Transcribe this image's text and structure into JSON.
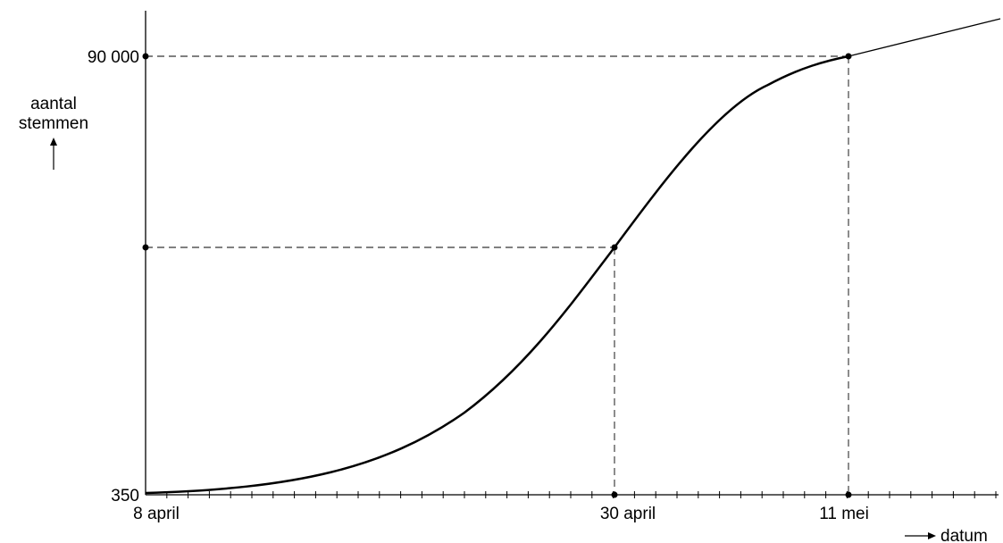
{
  "chart_data": {
    "type": "line",
    "title": "",
    "xlabel": "datum",
    "ylabel_lines": [
      "aantal",
      "stemmen"
    ],
    "x_tick_labels": [
      "8 april",
      "30 april",
      "11 mei"
    ],
    "y_tick_labels": [
      "350",
      "90 000"
    ],
    "x_scale": "date, one minor tick per day",
    "ylim": [
      350,
      90000
    ],
    "grid": false,
    "series": [
      {
        "values": [
          {
            "x": "8 april",
            "y": 350
          },
          {
            "x": "30 april",
            "y": 55000
          },
          {
            "x": "11 mei",
            "y": 90000
          }
        ]
      }
    ],
    "annotations": [
      {
        "type": "dashed-guide",
        "x": "30 april",
        "y": 55000,
        "note": "y value unlabeled"
      },
      {
        "type": "dashed-guide",
        "x": "11 mei",
        "y": 90000
      }
    ],
    "colors": {
      "curve": "#000000",
      "axes": "#000000",
      "guides": "#000000"
    }
  }
}
